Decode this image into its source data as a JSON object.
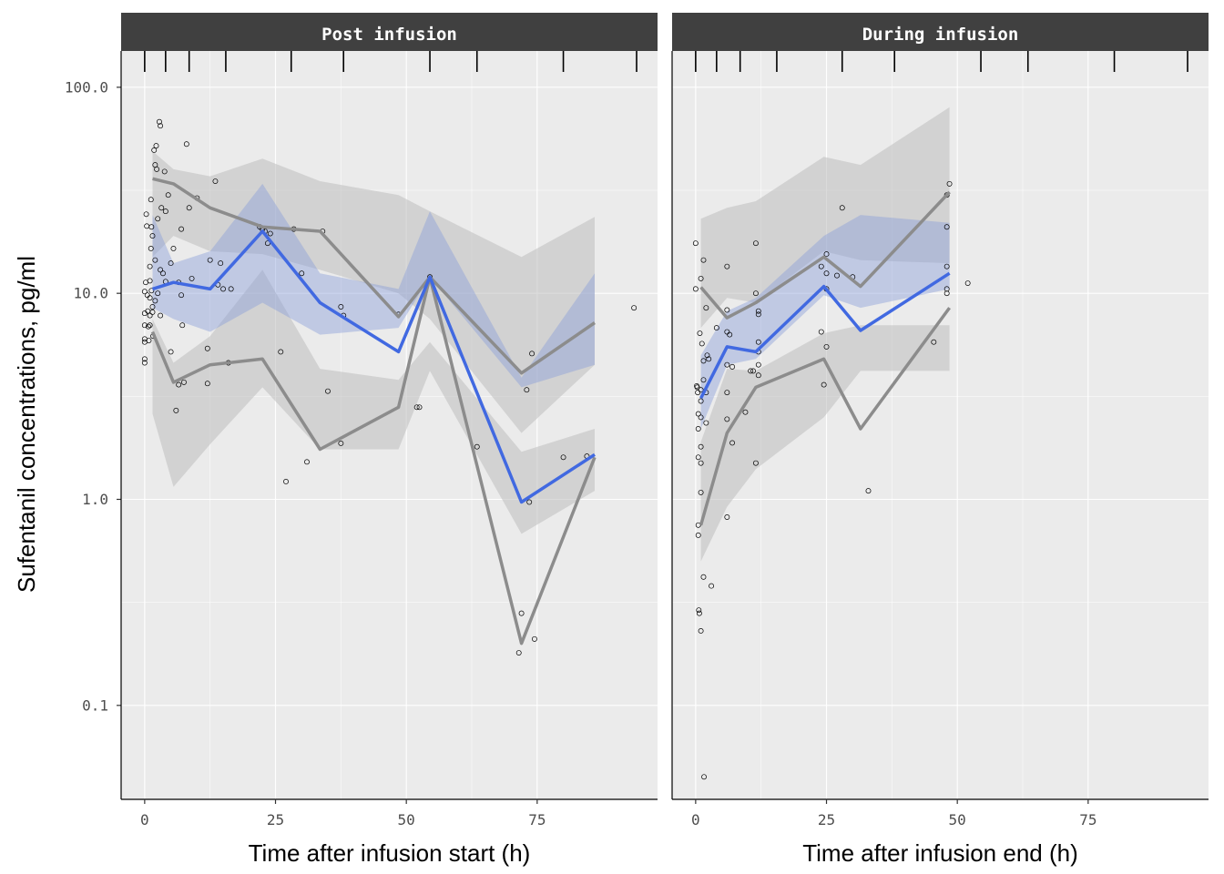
{
  "chart_data": {
    "type": "line",
    "ylabel": "Sufentanil concentrations, pg/ml",
    "y_scale": "log10",
    "ylim": [
      0.035,
      150
    ],
    "y_ticks": [
      0.1,
      1.0,
      10.0,
      100.0
    ],
    "y_tick_labels": [
      "0.1",
      "1.0",
      "10.0",
      "100.0"
    ],
    "x_ticks": [
      0,
      25,
      50,
      75
    ],
    "x_tick_labels": [
      "0",
      "25",
      "50",
      "75"
    ],
    "xlim": [
      -4.5,
      98
    ],
    "grid": true,
    "colors": {
      "panel_bg": "#EBEBEB",
      "strip_bg": "#404040",
      "grid": "#FFFFFF",
      "median_line": "#4169E1",
      "median_band": "#8C9FD9",
      "percentile_line": "#8C8C8C",
      "percentile_band": "#BEBEBE"
    },
    "panels": [
      {
        "strip_label": "Post infusion",
        "xlabel": "Time after infusion start (h)",
        "rug_x": [
          0,
          4,
          8.5,
          15.5,
          28,
          38,
          54.5,
          63.5,
          80,
          94
        ],
        "bins_x": [
          1.5,
          5.5,
          12.5,
          22.5,
          33.5,
          48.5,
          54.5,
          72,
          86
        ],
        "observed_median": [
          10.5,
          11.3,
          10.5,
          20,
          9,
          5.2,
          12,
          0.97,
          1.65
        ],
        "observed_p05": [
          6.5,
          3.7,
          4.5,
          4.8,
          1.75,
          2.8,
          12,
          0.2,
          1.6
        ],
        "observed_p95": [
          36,
          34,
          26,
          21,
          20,
          7.7,
          12,
          4.1,
          7.2
        ],
        "median_pi": {
          "low": [
            8.5,
            7.5,
            6.5,
            9,
            6.3,
            6.8,
            12,
            3.5,
            4.5
          ],
          "high": [
            24,
            14,
            16,
            34,
            12.5,
            10.5,
            25,
            3.9,
            12.5
          ]
        },
        "p05_pi": {
          "low": [
            2.6,
            1.15,
            1.85,
            3.5,
            1.75,
            1.75,
            4.2,
            0.68,
            1.1
          ],
          "high": [
            7.5,
            4.6,
            6.2,
            13,
            4.3,
            3.8,
            5.8,
            1.7,
            2.2
          ]
        },
        "p95_pi": {
          "low": [
            15,
            19,
            16,
            15.5,
            13,
            10,
            7.5,
            2.1,
            4.5
          ],
          "high": [
            49,
            40,
            37,
            45,
            35,
            30,
            25,
            15,
            23.5
          ]
        },
        "points": [
          [
            0,
            8
          ],
          [
            0,
            7
          ],
          [
            0,
            6
          ],
          [
            0,
            5.8
          ],
          [
            0,
            4.8
          ],
          [
            0,
            4.6
          ],
          [
            0,
            10.2
          ],
          [
            0.2,
            11.3
          ],
          [
            0.3,
            24.2
          ],
          [
            0.4,
            21.2
          ],
          [
            0.5,
            9.8
          ],
          [
            0.6,
            8.2
          ],
          [
            0.7,
            6.9
          ],
          [
            0.8,
            5.9
          ],
          [
            1,
            13.5
          ],
          [
            1,
            11.5
          ],
          [
            1,
            9.5
          ],
          [
            1,
            7.8
          ],
          [
            1,
            7
          ],
          [
            1.2,
            28.5
          ],
          [
            1.2,
            16.5
          ],
          [
            1.3,
            21
          ],
          [
            1.3,
            10.3
          ],
          [
            1.5,
            19
          ],
          [
            1.5,
            8.6
          ],
          [
            1.5,
            8.1
          ],
          [
            1.6,
            6.2
          ],
          [
            1.8,
            49.5
          ],
          [
            2,
            42
          ],
          [
            2,
            14.5
          ],
          [
            2,
            9.2
          ],
          [
            2.2,
            52
          ],
          [
            2.3,
            40
          ],
          [
            2.5,
            23
          ],
          [
            2.5,
            10
          ],
          [
            2.8,
            68
          ],
          [
            3,
            65
          ],
          [
            3,
            7.8
          ],
          [
            3,
            13
          ],
          [
            3.2,
            26
          ],
          [
            3.5,
            12.5
          ],
          [
            3.8,
            39
          ],
          [
            4,
            25
          ],
          [
            4,
            11.4
          ],
          [
            4.5,
            30
          ],
          [
            5,
            5.2
          ],
          [
            5,
            14
          ],
          [
            5.5,
            16.5
          ],
          [
            6,
            2.7
          ],
          [
            6.5,
            11.3
          ],
          [
            6.5,
            3.6
          ],
          [
            7,
            20.5
          ],
          [
            7,
            9.8
          ],
          [
            7.2,
            7
          ],
          [
            7.5,
            3.7
          ],
          [
            8,
            53
          ],
          [
            8.5,
            26
          ],
          [
            9,
            11.8
          ],
          [
            10,
            29
          ],
          [
            12,
            3.65
          ],
          [
            12,
            5.4
          ],
          [
            12.5,
            14.5
          ],
          [
            13.5,
            35
          ],
          [
            14,
            11
          ],
          [
            14.5,
            14
          ],
          [
            15,
            10.5
          ],
          [
            16,
            4.6
          ],
          [
            16.5,
            10.5
          ],
          [
            22,
            21
          ],
          [
            22.5,
            20.5
          ],
          [
            23,
            20
          ],
          [
            23.5,
            17.5
          ],
          [
            24,
            19.5
          ],
          [
            26,
            5.2
          ],
          [
            27,
            1.22
          ],
          [
            28.5,
            20.5
          ],
          [
            30,
            12.5
          ],
          [
            31,
            1.52
          ],
          [
            34,
            20
          ],
          [
            35,
            3.35
          ],
          [
            37.5,
            8.6
          ],
          [
            37.5,
            1.87
          ],
          [
            38,
            7.8
          ],
          [
            48.5,
            7.9
          ],
          [
            52,
            2.8
          ],
          [
            52.5,
            2.8
          ],
          [
            54.5,
            12
          ],
          [
            63.5,
            1.8
          ],
          [
            71.5,
            0.18
          ],
          [
            72,
            0.28
          ],
          [
            73,
            3.4
          ],
          [
            73.5,
            0.97
          ],
          [
            74,
            5.1
          ],
          [
            74.5,
            0.21
          ],
          [
            80,
            1.6
          ],
          [
            84.5,
            1.62
          ],
          [
            93.5,
            8.5
          ]
        ]
      },
      {
        "strip_label": "During infusion",
        "xlabel": "Time after infusion end (h)",
        "rug_x": [
          0,
          4,
          8.5,
          15.5,
          28,
          38,
          54.5,
          63.5,
          80,
          94
        ],
        "bins_x": [
          1,
          6,
          11.5,
          24.5,
          31.5,
          48.5
        ],
        "observed_median": [
          3.1,
          5.5,
          5.2,
          10.8,
          6.6,
          12.5
        ],
        "observed_p05": [
          0.75,
          2.1,
          3.5,
          4.8,
          2.2,
          8.5
        ],
        "observed_p95": [
          10.7,
          7.6,
          9,
          15,
          10.8,
          31
        ],
        "median_pi": {
          "low": [
            2.2,
            4.5,
            4.8,
            9.8,
            8.5,
            10.5
          ],
          "high": [
            5,
            8.2,
            9.5,
            19,
            24,
            22
          ]
        },
        "p05_pi": {
          "low": [
            0.5,
            0.92,
            1.4,
            2.5,
            4.2,
            4.2
          ],
          "high": [
            1.9,
            4.3,
            4.2,
            6.4,
            7,
            7
          ]
        },
        "p95_pi": {
          "low": [
            6.8,
            9.5,
            9,
            16,
            14.5,
            14
          ],
          "high": [
            23,
            26,
            28,
            46,
            42,
            80
          ]
        },
        "points": [
          [
            0,
            17.5
          ],
          [
            0,
            10.5
          ],
          [
            0.2,
            3.55
          ],
          [
            0.3,
            3.5
          ],
          [
            0.4,
            3.3
          ],
          [
            0.5,
            2.6
          ],
          [
            0.5,
            2.2
          ],
          [
            0.5,
            1.6
          ],
          [
            0.5,
            0.75
          ],
          [
            0.5,
            0.67
          ],
          [
            0.6,
            0.29
          ],
          [
            0.7,
            0.28
          ],
          [
            0.8,
            6.4
          ],
          [
            1,
            11.8
          ],
          [
            1,
            3.4
          ],
          [
            1,
            3
          ],
          [
            1,
            2.5
          ],
          [
            1,
            1.8
          ],
          [
            1,
            1.5
          ],
          [
            1,
            1.08
          ],
          [
            1,
            0.23
          ],
          [
            1.2,
            5.7
          ],
          [
            1.5,
            14.5
          ],
          [
            1.5,
            4.7
          ],
          [
            1.5,
            3.8
          ],
          [
            1.5,
            0.42
          ],
          [
            1.6,
            0.045
          ],
          [
            2,
            8.5
          ],
          [
            2,
            3.3
          ],
          [
            2,
            2.35
          ],
          [
            2.2,
            5
          ],
          [
            2.5,
            4.8
          ],
          [
            3,
            0.38
          ],
          [
            4,
            6.8
          ],
          [
            6,
            13.5
          ],
          [
            6,
            8.3
          ],
          [
            6,
            6.5
          ],
          [
            6,
            4.5
          ],
          [
            6,
            3.3
          ],
          [
            6,
            2.45
          ],
          [
            6,
            0.82
          ],
          [
            6.5,
            6.3
          ],
          [
            7,
            1.88
          ],
          [
            7,
            4.4
          ],
          [
            9.5,
            2.65
          ],
          [
            10.5,
            4.2
          ],
          [
            11,
            4.2
          ],
          [
            11.5,
            1.5
          ],
          [
            11.5,
            17.5
          ],
          [
            11.5,
            10
          ],
          [
            12,
            7.9
          ],
          [
            12,
            8.2
          ],
          [
            12,
            5.8
          ],
          [
            12,
            5.2
          ],
          [
            12,
            4.5
          ],
          [
            12,
            4
          ],
          [
            24,
            13.5
          ],
          [
            24,
            6.5
          ],
          [
            24.5,
            3.6
          ],
          [
            25,
            15.5
          ],
          [
            25,
            12.5
          ],
          [
            25,
            10.5
          ],
          [
            25,
            5.5
          ],
          [
            27,
            12.2
          ],
          [
            28,
            26
          ],
          [
            30,
            12
          ],
          [
            33,
            1.1
          ],
          [
            45.5,
            5.8
          ],
          [
            48,
            30
          ],
          [
            48,
            21
          ],
          [
            48,
            10.5
          ],
          [
            48,
            10
          ],
          [
            48,
            13.5
          ],
          [
            48.5,
            34
          ],
          [
            52,
            11.2
          ]
        ]
      }
    ]
  }
}
